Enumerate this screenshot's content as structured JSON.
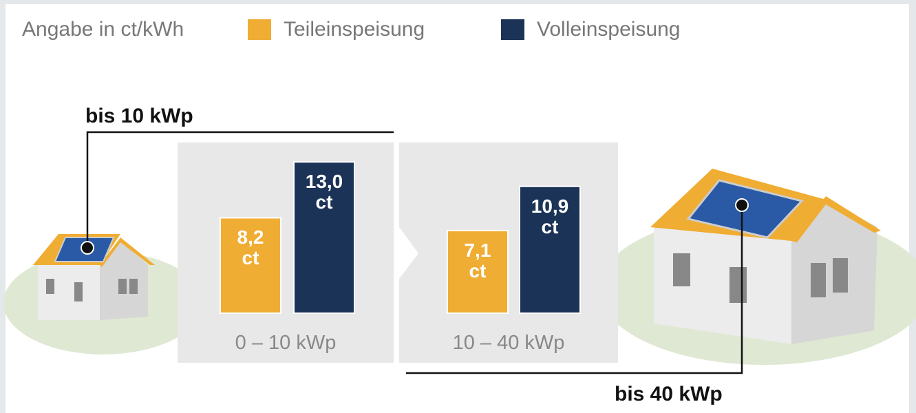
{
  "chart_data": {
    "type": "bar",
    "note": "Angabe in ct/kWh",
    "categories": [
      "0 – 10 kWp",
      "10 – 40 kWp"
    ],
    "series": [
      {
        "name": "Teileinspeisung",
        "color": "#f0ad33",
        "values": [
          8.2,
          7.1
        ],
        "value_labels": [
          "8,2 ct",
          "7,1 ct"
        ]
      },
      {
        "name": "Volleinspeisung",
        "color": "#1b3356",
        "values": [
          13.0,
          10.9
        ],
        "value_labels": [
          "13,0 ct",
          "10,9 ct"
        ]
      }
    ],
    "annotations": [
      "bis 10 kWp",
      "bis 40 kWp"
    ]
  }
}
